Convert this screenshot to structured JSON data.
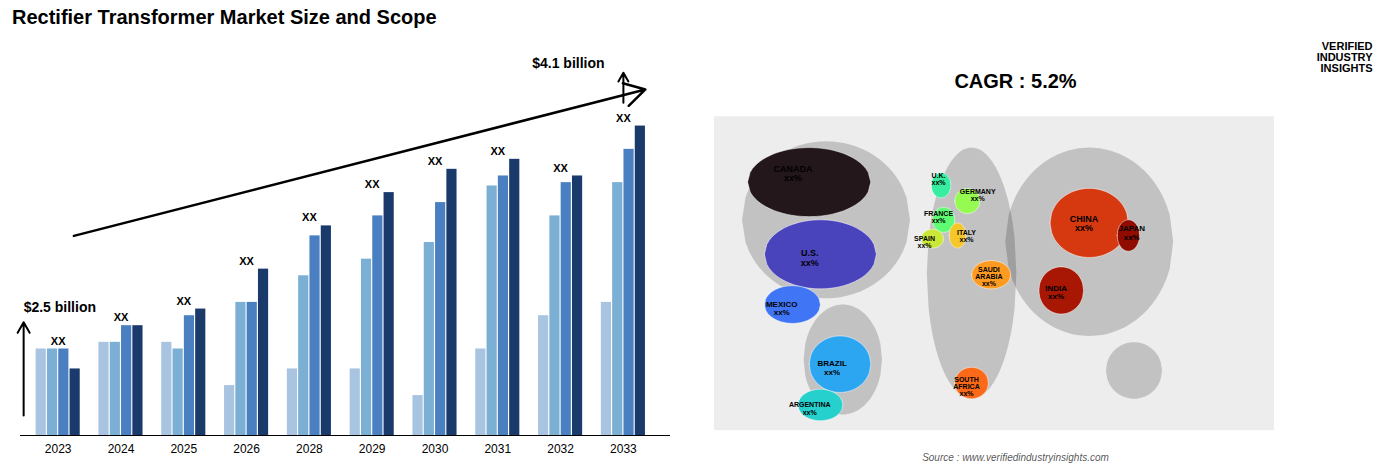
{
  "chart_data": {
    "type": "bar",
    "title": "Rectifier Transformer Market Size and Scope",
    "categories": [
      "2023",
      "2024",
      "2025",
      "2026",
      "2028",
      "2029",
      "2030",
      "2031",
      "2032",
      "2033"
    ],
    "series": [
      {
        "color": "#a8c4e0",
        "values": [
          0.26,
          0.28,
          0.28,
          0.15,
          0.2,
          0.2,
          0.12,
          0.26,
          0.36,
          0.4
        ]
      },
      {
        "color": "#7bafd4",
        "values": [
          0.26,
          0.28,
          0.26,
          0.4,
          0.48,
          0.53,
          0.58,
          0.75,
          0.66,
          0.76
        ]
      },
      {
        "color": "#4a7fc1",
        "values": [
          0.26,
          0.33,
          0.36,
          0.4,
          0.6,
          0.66,
          0.7,
          0.78,
          0.76,
          0.86
        ]
      },
      {
        "color": "#1a3a6b",
        "values": [
          0.2,
          0.33,
          0.38,
          0.5,
          0.63,
          0.73,
          0.8,
          0.83,
          0.78,
          0.93
        ]
      }
    ],
    "ylim": [
      0,
      1.1
    ],
    "grid": false,
    "tick_labels": "x",
    "annotations": [
      "XX",
      "XX",
      "XX",
      "XX",
      "XX",
      "XX",
      "XX",
      "XX",
      "XX",
      "XX",
      "$2.5 billion",
      "$4.1 billion",
      "CAGR : 5.2%",
      "Source : www.verifiedindustryinsights.com",
      "VERIFIED\nINDUSTRY\nINSIGHTS",
      "CANADA\nxx%",
      "U.S.\nxx%",
      "MEXICO\nxx%",
      "BRAZIL\nxx%",
      "ARGENTINA\nxx%",
      "U.K.\nxx%",
      "FRANCE\nxx%",
      "GERMANY\nxx%",
      "SPAIN\nxx%",
      "ITALY\nxx%",
      "SAUDI\nARABIA\nxx%",
      "SOUTH\nAFRICA\nxx%",
      "CHINA\nxx%",
      "INDIA\nxx%",
      "JAPAN\nxx%"
    ]
  }
}
